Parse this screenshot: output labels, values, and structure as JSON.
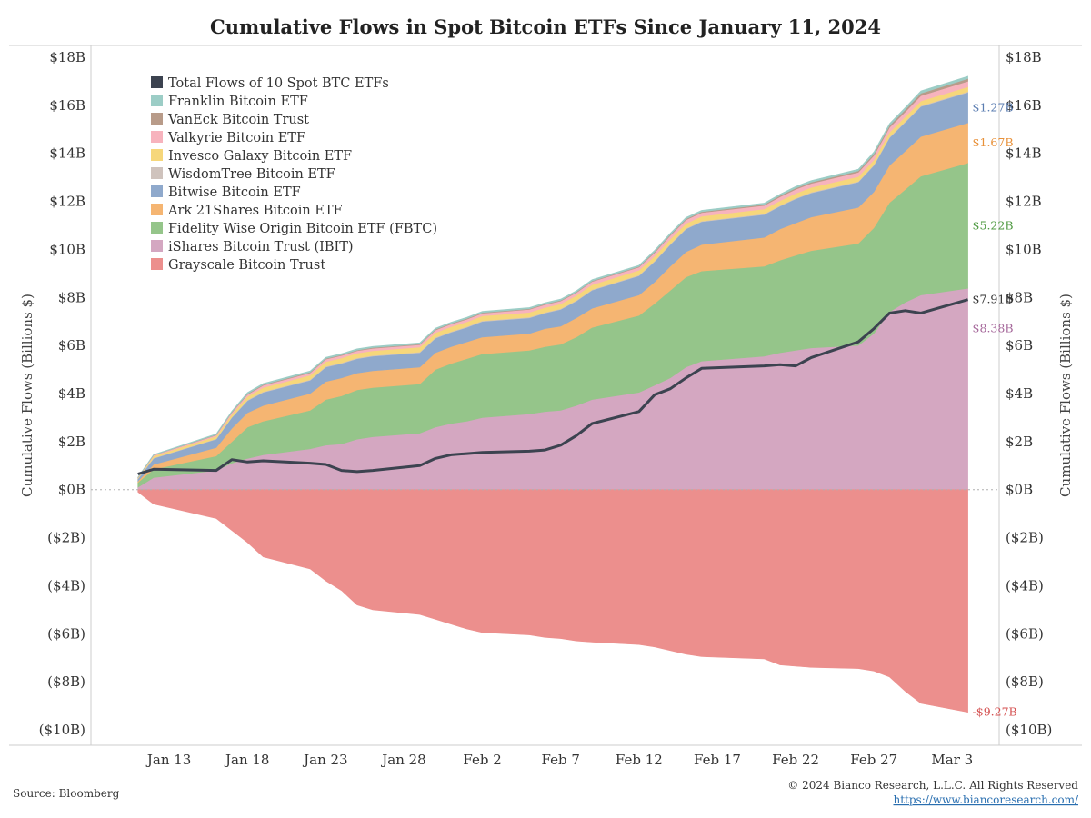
{
  "title": "Cumulative Flows in Spot Bitcoin ETFs Since January 11, 2024",
  "source": "Source: Bloomberg",
  "copyright": "© 2024 Bianco Research, L.L.C. All Rights Reserved",
  "website": "https://www.biancoresearch.com/",
  "colors": {
    "Grayscale Bitcoin Trust": "#ec8f8d",
    "iShares Bitcoin Trust (IBIT)": "#d4a7c1",
    "Fidelity Wise Origin Bitcoin ETF (FBTC)": "#95c58a",
    "Ark 21Shares Bitcoin ETF": "#f5b572",
    "Bitwise Bitcoin ETF": "#8fa9cc",
    "WisdomTree Bitcoin ETF": "#cfc3bd",
    "Invesco Galaxy Bitcoin ETF": "#f6d77b",
    "Valkyrie Bitcoin ETF": "#f7b3bd",
    "VanEck Bitcoin Trust": "#b89b89",
    "Franklin Bitcoin ETF": "#9ccdc6",
    "Total Flows of 10 Spot BTC ETFs": "#3c4350"
  },
  "chart_data": {
    "type": "area",
    "title": "Cumulative Flows in Spot Bitcoin ETFs Since January 11, 2024",
    "ylabel_left": "Cumulative Flows (Billions $)",
    "ylabel_right": "Cumulative Flows (Billions $)",
    "ylim": [
      -10,
      18
    ],
    "yticks": [
      {
        "value": 18,
        "label": "$18B"
      },
      {
        "value": 16,
        "label": "$16B"
      },
      {
        "value": 14,
        "label": "$14B"
      },
      {
        "value": 12,
        "label": "$12B"
      },
      {
        "value": 10,
        "label": "$10B"
      },
      {
        "value": 8,
        "label": "$8B"
      },
      {
        "value": 6,
        "label": "$6B"
      },
      {
        "value": 4,
        "label": "$4B"
      },
      {
        "value": 2,
        "label": "$2B"
      },
      {
        "value": 0,
        "label": "$0B"
      },
      {
        "value": -2,
        "label": "($2B)"
      },
      {
        "value": -4,
        "label": "($4B)"
      },
      {
        "value": -6,
        "label": "($6B)"
      },
      {
        "value": -8,
        "label": "($8B)"
      },
      {
        "value": -10,
        "label": "($10B)"
      }
    ],
    "xlim": [
      "2024-01-08",
      "2024-03-06"
    ],
    "xticks": [
      {
        "date": "2024-01-13",
        "label": "Jan 13"
      },
      {
        "date": "2024-01-18",
        "label": "Jan 18"
      },
      {
        "date": "2024-01-23",
        "label": "Jan 23"
      },
      {
        "date": "2024-01-28",
        "label": "Jan 28"
      },
      {
        "date": "2024-02-02",
        "label": "Feb 2"
      },
      {
        "date": "2024-02-07",
        "label": "Feb 7"
      },
      {
        "date": "2024-02-12",
        "label": "Feb 12"
      },
      {
        "date": "2024-02-17",
        "label": "Feb 17"
      },
      {
        "date": "2024-02-22",
        "label": "Feb 22"
      },
      {
        "date": "2024-02-27",
        "label": "Feb 27"
      },
      {
        "date": "2024-03-03",
        "label": "Mar 3"
      }
    ],
    "dates": [
      "2024-01-11",
      "2024-01-12",
      "2024-01-16",
      "2024-01-17",
      "2024-01-18",
      "2024-01-19",
      "2024-01-22",
      "2024-01-23",
      "2024-01-24",
      "2024-01-25",
      "2024-01-26",
      "2024-01-29",
      "2024-01-30",
      "2024-01-31",
      "2024-02-01",
      "2024-02-02",
      "2024-02-05",
      "2024-02-06",
      "2024-02-07",
      "2024-02-08",
      "2024-02-09",
      "2024-02-12",
      "2024-02-13",
      "2024-02-14",
      "2024-02-15",
      "2024-02-16",
      "2024-02-20",
      "2024-02-21",
      "2024-02-22",
      "2024-02-23",
      "2024-02-26",
      "2024-02-27",
      "2024-02-28",
      "2024-02-29",
      "2024-03-01",
      "2024-03-04"
    ],
    "negative_series": {
      "name": "Grayscale Bitcoin Trust",
      "values": [
        -0.1,
        -0.6,
        -1.2,
        -1.7,
        -2.2,
        -2.8,
        -3.3,
        -3.8,
        -4.2,
        -4.8,
        -5.0,
        -5.2,
        -5.4,
        -5.6,
        -5.8,
        -5.95,
        -6.05,
        -6.15,
        -6.2,
        -6.3,
        -6.35,
        -6.45,
        -6.55,
        -6.7,
        -6.85,
        -6.95,
        -7.05,
        -7.3,
        -7.35,
        -7.4,
        -7.45,
        -7.55,
        -7.8,
        -8.4,
        -8.9,
        -9.27
      ]
    },
    "series": [
      {
        "name": "iShares Bitcoin Trust (IBIT)",
        "values": [
          0.1,
          0.5,
          0.8,
          1.1,
          1.3,
          1.45,
          1.7,
          1.85,
          1.9,
          2.1,
          2.2,
          2.35,
          2.6,
          2.75,
          2.85,
          3.0,
          3.15,
          3.25,
          3.3,
          3.5,
          3.75,
          4.05,
          4.35,
          4.65,
          5.1,
          5.35,
          5.55,
          5.7,
          5.8,
          5.9,
          6.0,
          6.5,
          7.4,
          7.8,
          8.1,
          8.38
        ]
      },
      {
        "name": "Fidelity Wise Origin Bitcoin ETF (FBTC)",
        "values": [
          0.2,
          0.35,
          0.6,
          0.9,
          1.3,
          1.4,
          1.6,
          1.9,
          2.0,
          2.05,
          2.05,
          2.05,
          2.4,
          2.5,
          2.6,
          2.65,
          2.65,
          2.7,
          2.75,
          2.85,
          3.0,
          3.2,
          3.4,
          3.65,
          3.75,
          3.75,
          3.75,
          3.85,
          3.95,
          4.05,
          4.25,
          4.4,
          4.55,
          4.7,
          4.95,
          5.22
        ]
      },
      {
        "name": "Ark 21Shares Bitcoin ETF",
        "values": [
          0.05,
          0.2,
          0.35,
          0.55,
          0.6,
          0.65,
          0.7,
          0.75,
          0.75,
          0.7,
          0.7,
          0.7,
          0.7,
          0.7,
          0.7,
          0.7,
          0.7,
          0.75,
          0.75,
          0.8,
          0.8,
          0.85,
          0.9,
          1.0,
          1.05,
          1.1,
          1.2,
          1.3,
          1.35,
          1.4,
          1.5,
          1.5,
          1.55,
          1.6,
          1.65,
          1.67
        ]
      },
      {
        "name": "Bitwise Bitcoin ETF",
        "values": [
          0.1,
          0.25,
          0.35,
          0.45,
          0.5,
          0.55,
          0.55,
          0.6,
          0.6,
          0.6,
          0.6,
          0.6,
          0.6,
          0.6,
          0.6,
          0.65,
          0.65,
          0.65,
          0.7,
          0.7,
          0.75,
          0.8,
          0.85,
          0.9,
          0.95,
          0.95,
          0.95,
          0.95,
          1.0,
          1.0,
          1.05,
          1.1,
          1.15,
          1.2,
          1.25,
          1.27
        ]
      },
      {
        "name": "WisdomTree Bitcoin ETF",
        "values": [
          0.01,
          0.02,
          0.02,
          0.02,
          0.03,
          0.03,
          0.03,
          0.03,
          0.03,
          0.03,
          0.03,
          0.03,
          0.03,
          0.03,
          0.03,
          0.03,
          0.03,
          0.03,
          0.03,
          0.03,
          0.03,
          0.03,
          0.03,
          0.03,
          0.03,
          0.03,
          0.03,
          0.03,
          0.03,
          0.03,
          0.03,
          0.03,
          0.03,
          0.03,
          0.03,
          0.03
        ]
      },
      {
        "name": "Invesco Galaxy Bitcoin ETF",
        "values": [
          0.03,
          0.08,
          0.1,
          0.12,
          0.15,
          0.17,
          0.18,
          0.2,
          0.2,
          0.2,
          0.2,
          0.2,
          0.2,
          0.2,
          0.2,
          0.2,
          0.2,
          0.2,
          0.2,
          0.2,
          0.2,
          0.2,
          0.2,
          0.2,
          0.2,
          0.2,
          0.2,
          0.2,
          0.2,
          0.2,
          0.2,
          0.2,
          0.2,
          0.2,
          0.2,
          0.2
        ]
      },
      {
        "name": "Valkyrie Bitcoin ETF",
        "values": [
          0.01,
          0.03,
          0.05,
          0.07,
          0.08,
          0.09,
          0.1,
          0.1,
          0.1,
          0.1,
          0.1,
          0.1,
          0.11,
          0.11,
          0.11,
          0.11,
          0.12,
          0.12,
          0.12,
          0.12,
          0.13,
          0.13,
          0.14,
          0.15,
          0.15,
          0.15,
          0.15,
          0.16,
          0.17,
          0.17,
          0.18,
          0.18,
          0.2,
          0.2,
          0.22,
          0.23
        ]
      },
      {
        "name": "VanEck Bitcoin Trust",
        "values": [
          0.01,
          0.01,
          0.02,
          0.02,
          0.03,
          0.03,
          0.03,
          0.03,
          0.03,
          0.03,
          0.03,
          0.03,
          0.03,
          0.03,
          0.03,
          0.03,
          0.03,
          0.03,
          0.03,
          0.03,
          0.03,
          0.03,
          0.04,
          0.04,
          0.04,
          0.04,
          0.04,
          0.05,
          0.05,
          0.05,
          0.06,
          0.07,
          0.08,
          0.09,
          0.1,
          0.11
        ]
      },
      {
        "name": "Franklin Bitcoin ETF",
        "values": [
          0.01,
          0.02,
          0.03,
          0.04,
          0.05,
          0.05,
          0.05,
          0.05,
          0.05,
          0.05,
          0.05,
          0.05,
          0.05,
          0.05,
          0.05,
          0.05,
          0.05,
          0.05,
          0.05,
          0.05,
          0.05,
          0.05,
          0.06,
          0.06,
          0.06,
          0.06,
          0.06,
          0.06,
          0.07,
          0.07,
          0.07,
          0.08,
          0.08,
          0.09,
          0.1,
          0.1
        ]
      }
    ],
    "total_line": {
      "name": "Total Flows of 10 Spot BTC ETFs",
      "values": [
        0.65,
        0.85,
        0.8,
        1.25,
        1.15,
        1.2,
        1.1,
        1.05,
        0.8,
        0.75,
        0.8,
        1.0,
        1.3,
        1.45,
        1.5,
        1.55,
        1.6,
        1.65,
        1.85,
        2.25,
        2.75,
        3.25,
        3.95,
        4.2,
        4.65,
        5.05,
        5.15,
        5.2,
        5.15,
        5.5,
        6.15,
        6.7,
        7.35,
        7.45,
        7.35,
        7.91
      ]
    },
    "legend": {
      "placement": "top-left",
      "items": [
        "Total Flows of 10 Spot BTC ETFs",
        "Franklin Bitcoin ETF",
        "VanEck Bitcoin Trust",
        "Valkyrie Bitcoin ETF",
        "Invesco Galaxy Bitcoin ETF",
        "WisdomTree Bitcoin ETF",
        "Bitwise Bitcoin ETF",
        "Ark 21Shares Bitcoin ETF",
        "Fidelity Wise Origin Bitcoin ETF (FBTC)",
        "iShares Bitcoin Trust (IBIT)",
        "Grayscale Bitcoin Trust"
      ]
    },
    "end_labels": [
      {
        "series": "Bitwise Bitcoin ETF",
        "text": "$1.27B",
        "color": "#5b7db1"
      },
      {
        "series": "Ark 21Shares Bitcoin ETF",
        "text": "$1.67B",
        "color": "#e8913a"
      },
      {
        "series": "Fidelity Wise Origin Bitcoin ETF (FBTC)",
        "text": "$5.22B",
        "color": "#4f9a42"
      },
      {
        "series": "Total Flows of 10 Spot BTC ETFs",
        "text": "$7.91B",
        "color": "#333333"
      },
      {
        "series": "iShares Bitcoin Trust (IBIT)",
        "text": "$8.38B",
        "color": "#a5679a"
      },
      {
        "series": "Grayscale Bitcoin Trust",
        "text": "-$9.27B",
        "color": "#d44f4f"
      }
    ],
    "grid": false
  }
}
